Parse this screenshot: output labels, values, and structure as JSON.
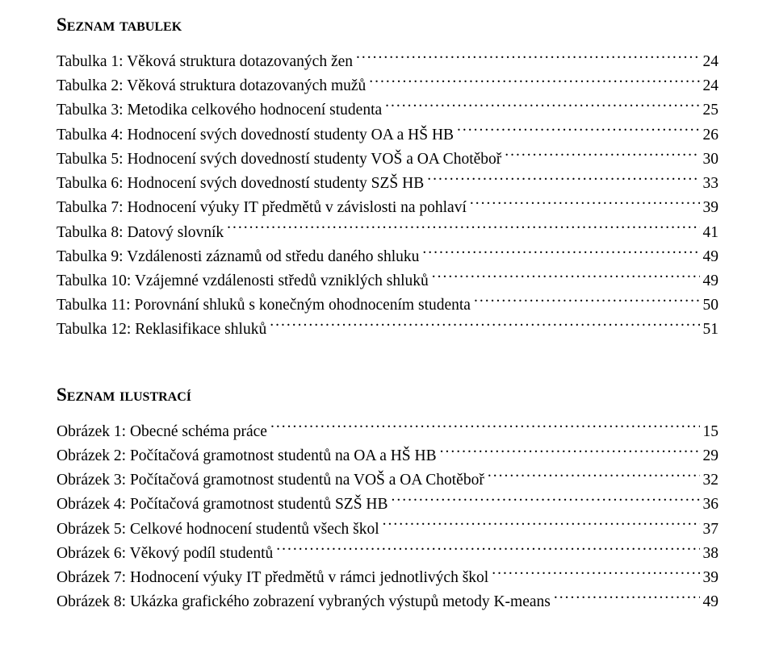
{
  "page": {
    "background_color": "#ffffff",
    "text_color": "#000000",
    "font_family": "Times New Roman",
    "body_font_size_pt": 15,
    "heading_font_size_pt": 17
  },
  "tables_section": {
    "heading": "Seznam tabulek",
    "entries": [
      {
        "label": "Tabulka 1: Věková struktura dotazovaných žen",
        "page": "24"
      },
      {
        "label": "Tabulka 2: Věková struktura dotazovaných mužů",
        "page": "24"
      },
      {
        "label": "Tabulka 3: Metodika celkového hodnocení studenta",
        "page": "25"
      },
      {
        "label": "Tabulka 4: Hodnocení svých dovedností studenty OA a HŠ HB",
        "page": "26"
      },
      {
        "label": "Tabulka 5: Hodnocení svých dovedností studenty VOŠ a OA Chotěboř",
        "page": "30"
      },
      {
        "label": "Tabulka 6: Hodnocení svých dovedností studenty SZŠ HB",
        "page": "33"
      },
      {
        "label": "Tabulka 7: Hodnocení výuky IT předmětů v závislosti na pohlaví",
        "page": "39"
      },
      {
        "label": "Tabulka 8: Datový slovník",
        "page": "41"
      },
      {
        "label": "Tabulka 9: Vzdálenosti záznamů od středu daného shluku",
        "page": "49"
      },
      {
        "label": "Tabulka 10: Vzájemné vzdálenosti středů vzniklých shluků",
        "page": "49"
      },
      {
        "label": "Tabulka 11: Porovnání shluků s konečným ohodnocením studenta",
        "page": "50"
      },
      {
        "label": "Tabulka 12: Reklasifikace shluků",
        "page": "51"
      }
    ]
  },
  "illustrations_section": {
    "heading": "Seznam ilustrací",
    "entries": [
      {
        "label": "Obrázek 1: Obecné schéma práce",
        "page": "15"
      },
      {
        "label": "Obrázek 2: Počítačová gramotnost studentů na OA a HŠ HB",
        "page": "29"
      },
      {
        "label": "Obrázek 3: Počítačová gramotnost studentů na VOŠ a OA Chotěboř",
        "page": "32"
      },
      {
        "label": "Obrázek 4: Počítačová gramotnost studentů SZŠ HB",
        "page": "36"
      },
      {
        "label": "Obrázek 5: Celkové hodnocení studentů všech škol",
        "page": "37"
      },
      {
        "label": "Obrázek 6: Věkový podíl studentů",
        "page": "38"
      },
      {
        "label": "Obrázek 7: Hodnocení výuky IT předmětů v rámci jednotlivých škol",
        "page": "39"
      },
      {
        "label": "Obrázek 8: Ukázka grafického zobrazení vybraných výstupů metody K-means",
        "page": "49"
      }
    ]
  }
}
